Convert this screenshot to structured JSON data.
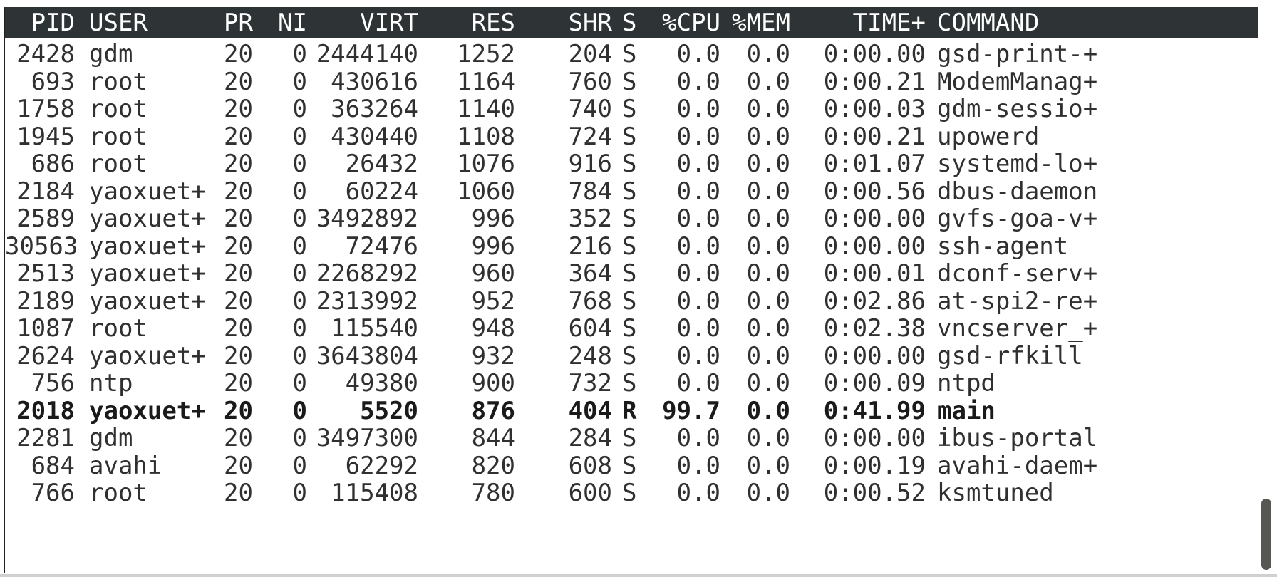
{
  "columns": [
    "PID",
    "USER",
    "PR",
    "NI",
    "VIRT",
    "RES",
    "SHR",
    "S",
    "%CPU",
    "%MEM",
    "TIME+",
    "COMMAND"
  ],
  "processes": [
    {
      "pid": "2428",
      "user": "gdm",
      "pr": "20",
      "ni": "0",
      "virt": "2444140",
      "res": "1252",
      "shr": "204",
      "s": "S",
      "cpu": "0.0",
      "mem": "0.0",
      "time": "0:00.00",
      "command": "gsd-print-+",
      "highlight": false
    },
    {
      "pid": "693",
      "user": "root",
      "pr": "20",
      "ni": "0",
      "virt": "430616",
      "res": "1164",
      "shr": "760",
      "s": "S",
      "cpu": "0.0",
      "mem": "0.0",
      "time": "0:00.21",
      "command": "ModemManag+",
      "highlight": false
    },
    {
      "pid": "1758",
      "user": "root",
      "pr": "20",
      "ni": "0",
      "virt": "363264",
      "res": "1140",
      "shr": "740",
      "s": "S",
      "cpu": "0.0",
      "mem": "0.0",
      "time": "0:00.03",
      "command": "gdm-sessio+",
      "highlight": false
    },
    {
      "pid": "1945",
      "user": "root",
      "pr": "20",
      "ni": "0",
      "virt": "430440",
      "res": "1108",
      "shr": "724",
      "s": "S",
      "cpu": "0.0",
      "mem": "0.0",
      "time": "0:00.21",
      "command": "upowerd",
      "highlight": false
    },
    {
      "pid": "686",
      "user": "root",
      "pr": "20",
      "ni": "0",
      "virt": "26432",
      "res": "1076",
      "shr": "916",
      "s": "S",
      "cpu": "0.0",
      "mem": "0.0",
      "time": "0:01.07",
      "command": "systemd-lo+",
      "highlight": false
    },
    {
      "pid": "2184",
      "user": "yaoxuet+",
      "pr": "20",
      "ni": "0",
      "virt": "60224",
      "res": "1060",
      "shr": "784",
      "s": "S",
      "cpu": "0.0",
      "mem": "0.0",
      "time": "0:00.56",
      "command": "dbus-daemon",
      "highlight": false
    },
    {
      "pid": "2589",
      "user": "yaoxuet+",
      "pr": "20",
      "ni": "0",
      "virt": "3492892",
      "res": "996",
      "shr": "352",
      "s": "S",
      "cpu": "0.0",
      "mem": "0.0",
      "time": "0:00.00",
      "command": "gvfs-goa-v+",
      "highlight": false
    },
    {
      "pid": "30563",
      "user": "yaoxuet+",
      "pr": "20",
      "ni": "0",
      "virt": "72476",
      "res": "996",
      "shr": "216",
      "s": "S",
      "cpu": "0.0",
      "mem": "0.0",
      "time": "0:00.00",
      "command": "ssh-agent",
      "highlight": false
    },
    {
      "pid": "2513",
      "user": "yaoxuet+",
      "pr": "20",
      "ni": "0",
      "virt": "2268292",
      "res": "960",
      "shr": "364",
      "s": "S",
      "cpu": "0.0",
      "mem": "0.0",
      "time": "0:00.01",
      "command": "dconf-serv+",
      "highlight": false
    },
    {
      "pid": "2189",
      "user": "yaoxuet+",
      "pr": "20",
      "ni": "0",
      "virt": "2313992",
      "res": "952",
      "shr": "768",
      "s": "S",
      "cpu": "0.0",
      "mem": "0.0",
      "time": "0:02.86",
      "command": "at-spi2-re+",
      "highlight": false
    },
    {
      "pid": "1087",
      "user": "root",
      "pr": "20",
      "ni": "0",
      "virt": "115540",
      "res": "948",
      "shr": "604",
      "s": "S",
      "cpu": "0.0",
      "mem": "0.0",
      "time": "0:02.38",
      "command": "vncserver_+",
      "highlight": false
    },
    {
      "pid": "2624",
      "user": "yaoxuet+",
      "pr": "20",
      "ni": "0",
      "virt": "3643804",
      "res": "932",
      "shr": "248",
      "s": "S",
      "cpu": "0.0",
      "mem": "0.0",
      "time": "0:00.00",
      "command": "gsd-rfkill",
      "highlight": false
    },
    {
      "pid": "756",
      "user": "ntp",
      "pr": "20",
      "ni": "0",
      "virt": "49380",
      "res": "900",
      "shr": "732",
      "s": "S",
      "cpu": "0.0",
      "mem": "0.0",
      "time": "0:00.09",
      "command": "ntpd",
      "highlight": false
    },
    {
      "pid": "2018",
      "user": "yaoxuet+",
      "pr": "20",
      "ni": "0",
      "virt": "5520",
      "res": "876",
      "shr": "404",
      "s": "R",
      "cpu": "99.7",
      "mem": "0.0",
      "time": "0:41.99",
      "command": "main",
      "highlight": true
    },
    {
      "pid": "2281",
      "user": "gdm",
      "pr": "20",
      "ni": "0",
      "virt": "3497300",
      "res": "844",
      "shr": "284",
      "s": "S",
      "cpu": "0.0",
      "mem": "0.0",
      "time": "0:00.00",
      "command": "ibus-portal",
      "highlight": false
    },
    {
      "pid": "684",
      "user": "avahi",
      "pr": "20",
      "ni": "0",
      "virt": "62292",
      "res": "820",
      "shr": "608",
      "s": "S",
      "cpu": "0.0",
      "mem": "0.0",
      "time": "0:00.19",
      "command": "avahi-daem+",
      "highlight": false
    },
    {
      "pid": "766",
      "user": "root",
      "pr": "20",
      "ni": "0",
      "virt": "115408",
      "res": "780",
      "shr": "600",
      "s": "S",
      "cpu": "0.0",
      "mem": "0.0",
      "time": "0:00.52",
      "command": "ksmtuned",
      "highlight": false
    }
  ]
}
